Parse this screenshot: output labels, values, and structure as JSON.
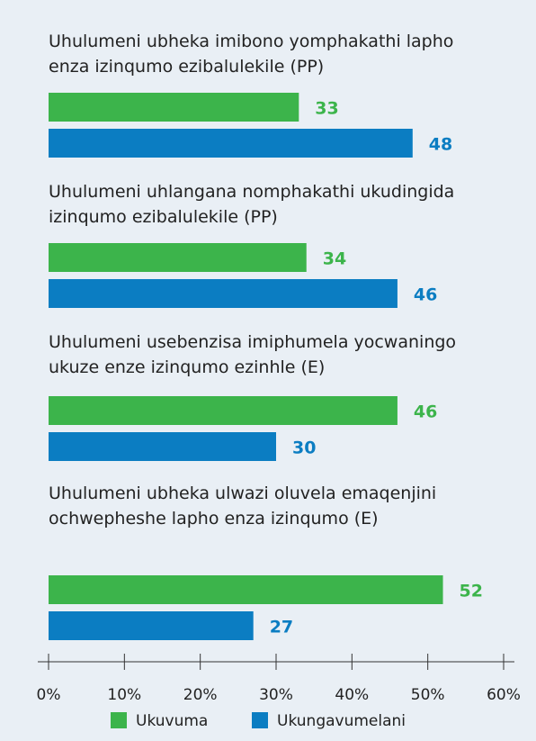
{
  "chart_data": {
    "type": "barh",
    "categories": [
      "Uhulumeni ubheka imibono yomphakathi lapho enza izinqumo ezibalulekile (PP)",
      "Uhulumeni uhlangana nomphakathi ukudingida izinqumo ezibalulekile (PP)",
      "Uhulumeni usebenzisa imiphumela yocwaningo ukuze enze izinqumo ezinhle (E)",
      "Uhulumeni ubheka ulwazi oluvela emaqenjini ochwepheshe lapho enza izinqumo (E)"
    ],
    "series": [
      {
        "name": "Ukuvuma",
        "color": "#3cb44b",
        "values": [
          33,
          34,
          46,
          52
        ]
      },
      {
        "name": "Ukungavumelani",
        "color": "#0b7dc2",
        "values": [
          48,
          46,
          30,
          27
        ]
      }
    ],
    "xlim": [
      0,
      60
    ],
    "xticks": [
      {
        "value": 0,
        "label": "0%"
      },
      {
        "value": 10,
        "label": "10%"
      },
      {
        "value": 20,
        "label": "20%"
      },
      {
        "value": 30,
        "label": "30%"
      },
      {
        "value": 40,
        "label": "40%"
      },
      {
        "value": 50,
        "label": "50%"
      },
      {
        "value": 60,
        "label": "60%"
      }
    ],
    "legend": "bottom"
  }
}
